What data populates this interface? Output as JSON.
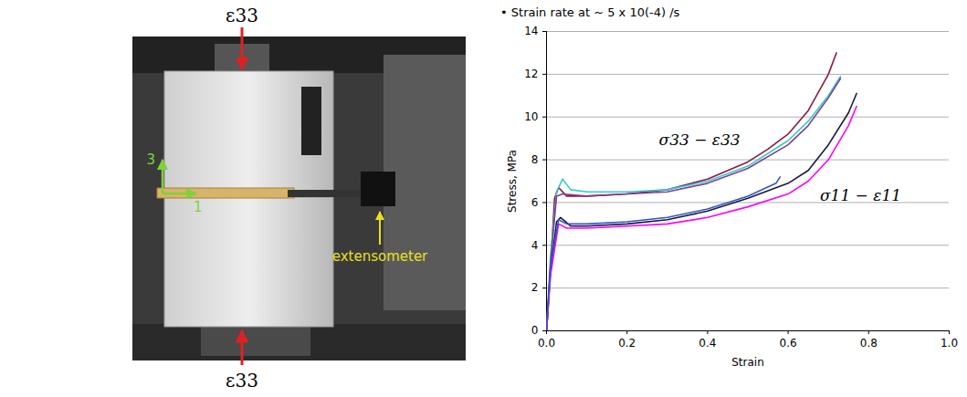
{
  "chart_data": {
    "type": "line",
    "title": "• Strain rate at ~ 5 x 10(-4) /s",
    "x_label": "Strain",
    "y_label": "Stress, MPa",
    "xlim": [
      0,
      1
    ],
    "xticks": [
      {
        "value": 0,
        "label": "0.0"
      },
      0.2,
      0.4,
      0.6,
      0.8,
      {
        "value": 1,
        "label": "1.0"
      }
    ],
    "ylim": [
      0,
      14
    ],
    "yticks": [
      0,
      2,
      4,
      6,
      8,
      10,
      12,
      14
    ],
    "grid": "y",
    "annotations": [
      {
        "text": "σ33 − ε33",
        "x": 0.38,
        "y": 8.9
      },
      {
        "text": "σ11 − ε11",
        "x": 0.78,
        "y": 6.3
      }
    ],
    "series": [
      {
        "color": "#8b1a3a",
        "x": [
          0,
          0.01,
          0.02,
          0.03,
          0.05,
          0.1,
          0.2,
          0.3,
          0.4,
          0.5,
          0.55,
          0.6,
          0.65,
          0.7,
          0.72
        ],
        "values": [
          0,
          3,
          6.2,
          6.7,
          6.3,
          6.3,
          6.4,
          6.6,
          7.1,
          7.9,
          8.5,
          9.2,
          10.3,
          12.0,
          13.0
        ]
      },
      {
        "color": "#33cccc",
        "x": [
          0,
          0.01,
          0.025,
          0.04,
          0.06,
          0.1,
          0.2,
          0.3,
          0.4,
          0.5,
          0.6,
          0.65,
          0.7,
          0.73
        ],
        "values": [
          0,
          3.5,
          6.5,
          7.1,
          6.6,
          6.5,
          6.5,
          6.6,
          7.0,
          7.7,
          8.9,
          9.8,
          11.0,
          11.9
        ]
      },
      {
        "color": "#7f3f98",
        "x": [
          0,
          0.01,
          0.025,
          0.04,
          0.1,
          0.2,
          0.3,
          0.4,
          0.5,
          0.6,
          0.65,
          0.7,
          0.73
        ],
        "values": [
          0,
          3.2,
          6.3,
          6.4,
          6.3,
          6.4,
          6.5,
          6.9,
          7.6,
          8.7,
          9.6,
          10.9,
          11.8
        ]
      },
      {
        "color": "#1a1a40",
        "x": [
          0,
          0.01,
          0.025,
          0.035,
          0.06,
          0.1,
          0.2,
          0.3,
          0.4,
          0.5,
          0.6,
          0.65,
          0.7,
          0.75,
          0.77
        ],
        "values": [
          0,
          2.8,
          5.1,
          5.3,
          4.9,
          4.9,
          5.0,
          5.2,
          5.6,
          6.2,
          6.9,
          7.5,
          8.7,
          10.2,
          11.1
        ]
      },
      {
        "color": "#ff00ff",
        "x": [
          0,
          0.01,
          0.03,
          0.05,
          0.1,
          0.2,
          0.3,
          0.4,
          0.5,
          0.6,
          0.65,
          0.7,
          0.75,
          0.77
        ],
        "values": [
          0,
          2.6,
          5.0,
          4.8,
          4.8,
          4.9,
          5.0,
          5.3,
          5.8,
          6.4,
          7.0,
          8.0,
          9.6,
          10.5
        ]
      },
      {
        "color": "#3355cc",
        "x": [
          0,
          0.01,
          0.03,
          0.05,
          0.1,
          0.2,
          0.3,
          0.4,
          0.5,
          0.57,
          0.58
        ],
        "values": [
          0,
          3,
          5.2,
          5.0,
          5.0,
          5.1,
          5.3,
          5.7,
          6.3,
          6.9,
          7.2
        ]
      }
    ]
  },
  "photo": {
    "load_label_top": "ε33",
    "load_label_bottom": "ε33",
    "axis_labels": [
      "3",
      "1"
    ],
    "callout": "extensometer"
  }
}
